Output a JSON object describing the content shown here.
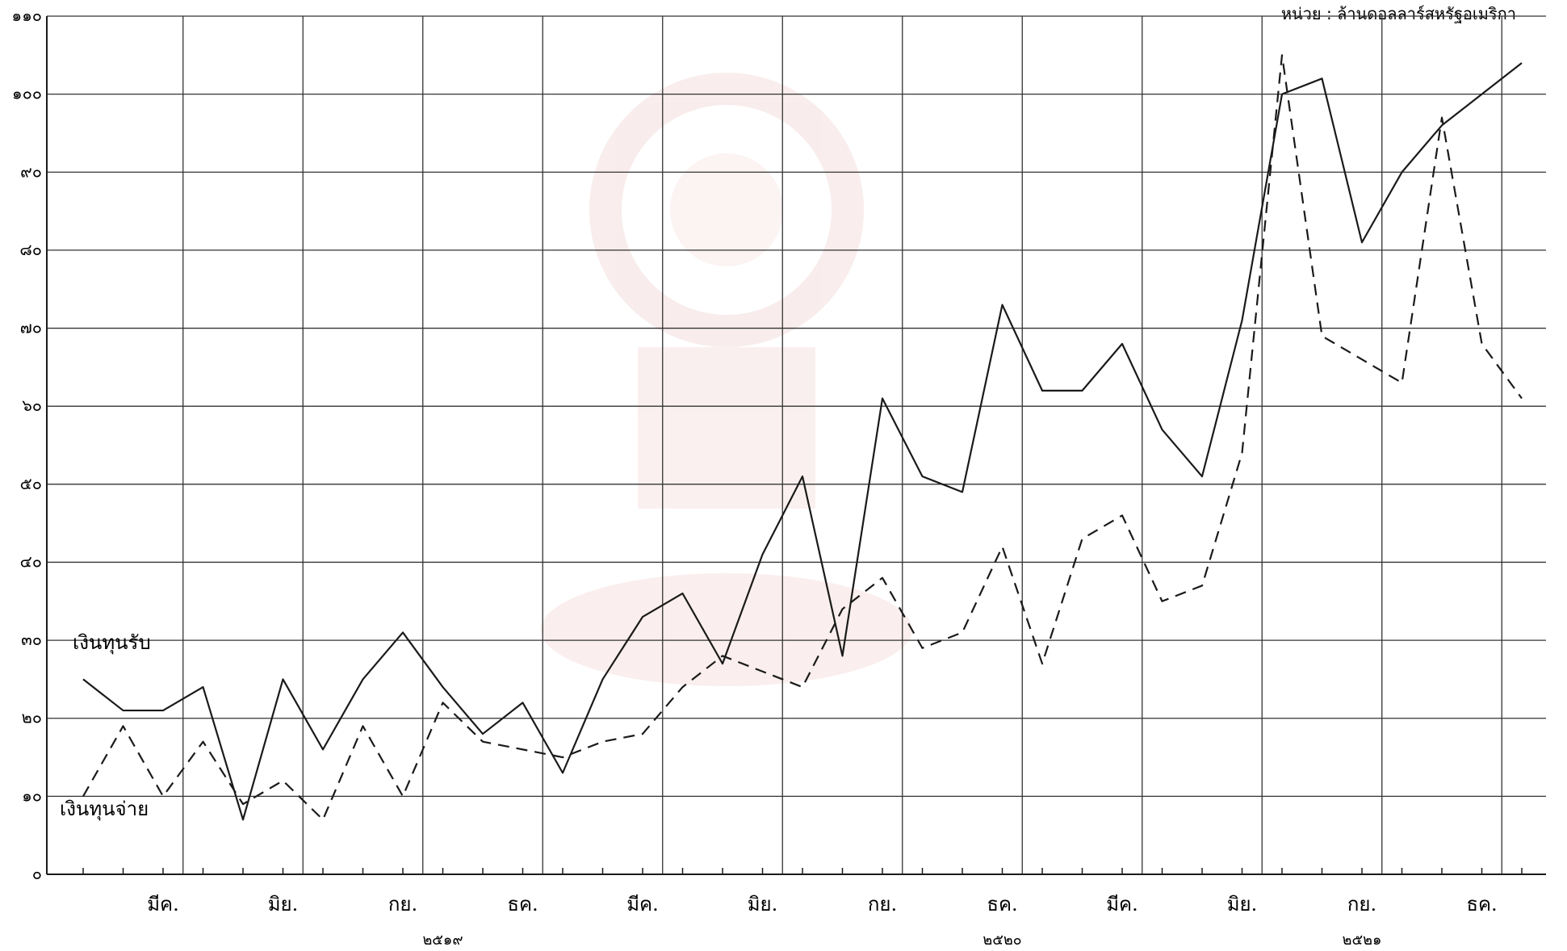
{
  "chart_data": {
    "type": "line",
    "unit_label": "หน่วย : ล้านดอลลาร์สหรัฐอเมริกา",
    "ylim": [
      0,
      110
    ],
    "yticks": [
      0,
      10,
      20,
      30,
      40,
      50,
      60,
      70,
      80,
      90,
      100,
      110
    ],
    "ytick_labels": [
      "๐",
      "๑๐",
      "๒๐",
      "๓๐",
      "๔๐",
      "๕๐",
      "๖๐",
      "๗๐",
      "๘๐",
      "๙๐",
      "๑๐๐",
      "๑๑๐"
    ],
    "x_month_labels": [
      "มีค.",
      "มิย.",
      "กย.",
      "ธค.",
      "มีค.",
      "มิย.",
      "กย.",
      "ธค.",
      "มีค.",
      "มิย.",
      "กย.",
      "ธค."
    ],
    "x_month_index": [
      3,
      6,
      9,
      12,
      15,
      18,
      21,
      24,
      27,
      30,
      33,
      36
    ],
    "x_year_labels": [
      "๒๕๑๙",
      "๒๕๒๐",
      "๒๕๒๑"
    ],
    "x_year_index": [
      10,
      24,
      33
    ],
    "grid": true,
    "series": [
      {
        "name": "เงินทุนรับ",
        "style": "solid",
        "x": [
          1,
          2,
          3,
          4,
          5,
          6,
          7,
          8,
          9,
          10,
          11,
          12,
          13,
          14,
          15,
          16,
          17,
          18,
          19,
          20,
          21,
          22,
          23,
          24,
          25,
          26,
          27,
          28,
          29,
          30,
          31,
          32,
          33,
          34,
          35,
          36,
          37
        ],
        "values": [
          25,
          21,
          21,
          24,
          7,
          25,
          16,
          25,
          31,
          24,
          18,
          22,
          13,
          25,
          33,
          36,
          27,
          41,
          51,
          28,
          61,
          51,
          49,
          73,
          62,
          62,
          68,
          57,
          51,
          71,
          100,
          102,
          81,
          90,
          96,
          100,
          104
        ]
      },
      {
        "name": "เงินทุนจ่าย",
        "style": "dashed",
        "x": [
          1,
          2,
          3,
          4,
          5,
          6,
          7,
          8,
          9,
          10,
          11,
          12,
          13,
          14,
          15,
          16,
          17,
          18,
          19,
          20,
          21,
          22,
          23,
          24,
          25,
          26,
          27,
          28,
          29,
          30,
          31,
          32,
          33,
          34,
          35,
          36,
          37
        ],
        "values": [
          10,
          19,
          10,
          17,
          9,
          12,
          7,
          19,
          10,
          22,
          17,
          16,
          15,
          17,
          18,
          24,
          28,
          26,
          24,
          34,
          38,
          29,
          31,
          42,
          27,
          43,
          46,
          35,
          37,
          54,
          105,
          69,
          66,
          63,
          97,
          68,
          61
        ]
      }
    ]
  },
  "colors": {
    "line": "#1a1a1a",
    "grid": "#333333",
    "watermark": "#f2d6d6"
  }
}
